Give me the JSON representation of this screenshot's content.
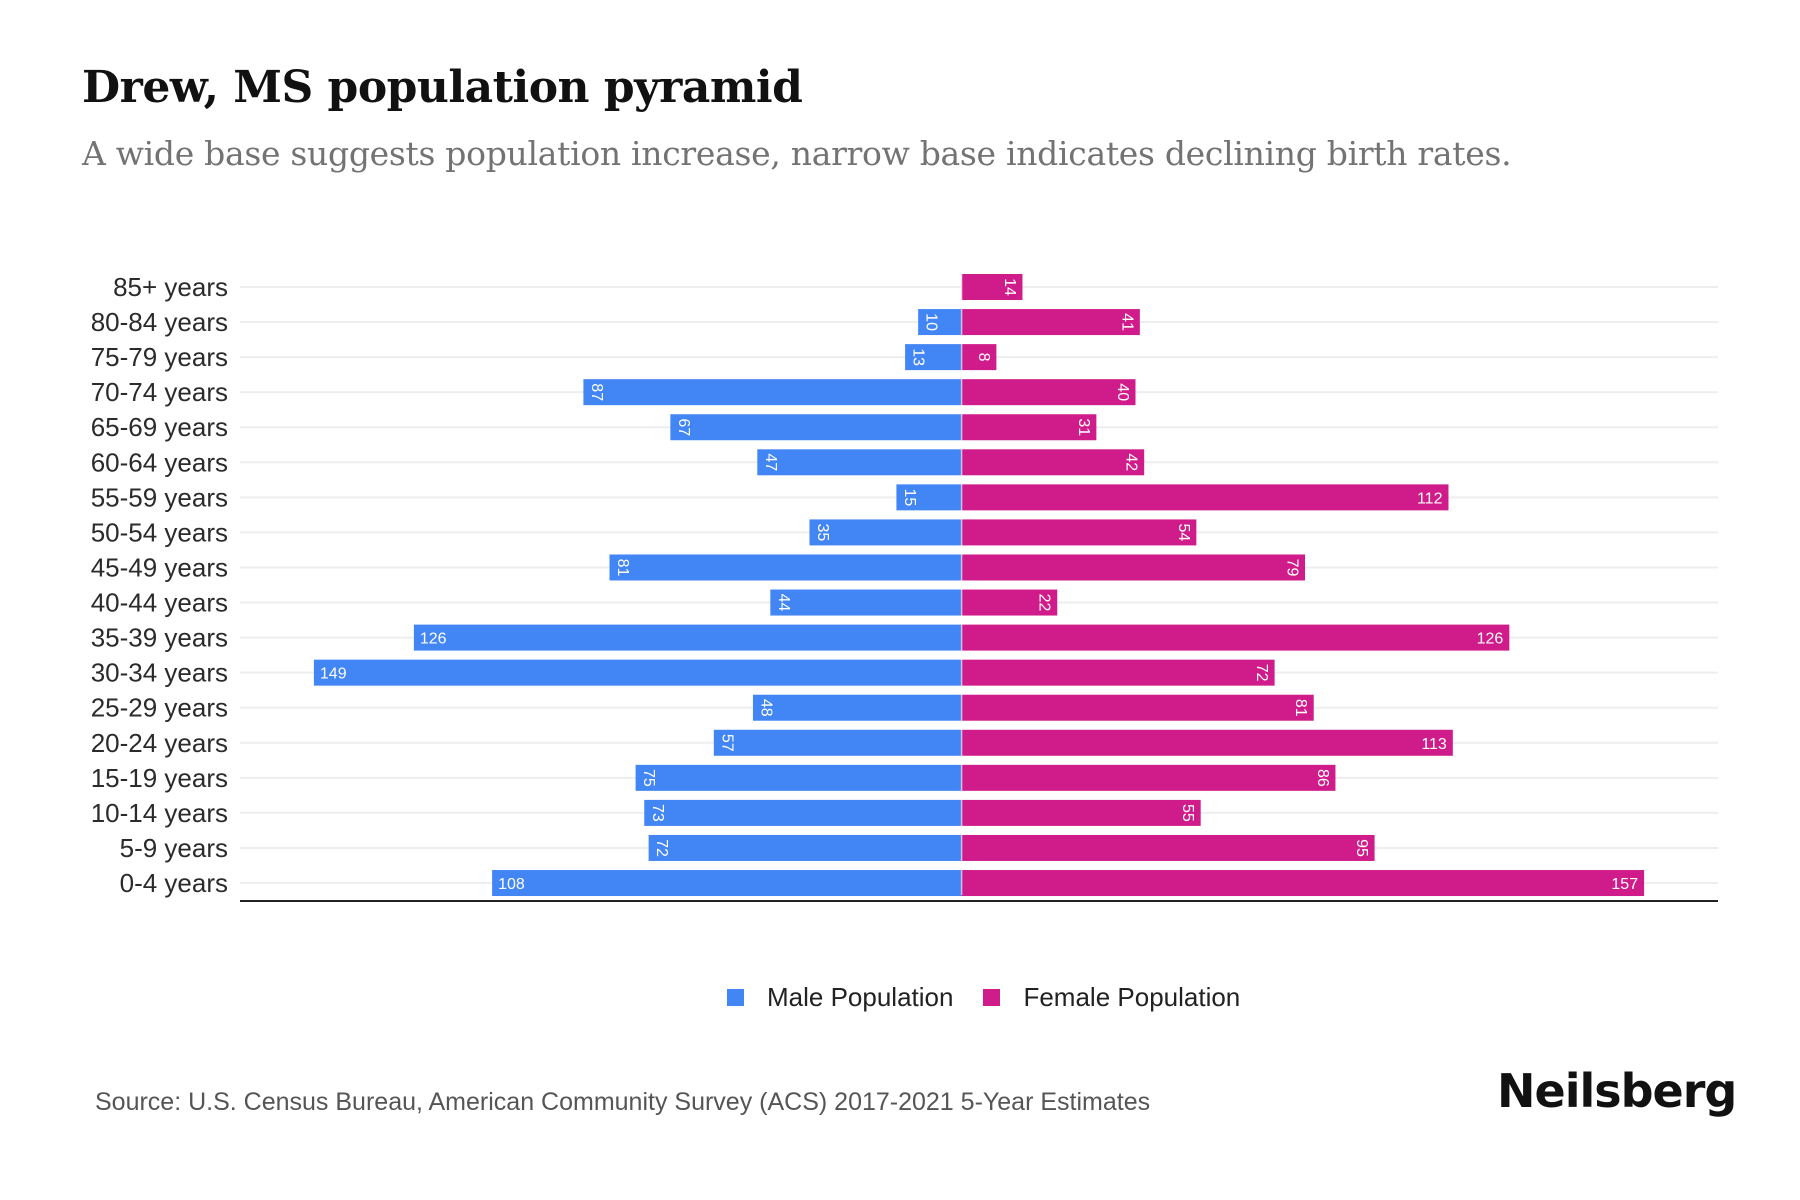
{
  "header": {
    "title": "Drew, MS population pyramid",
    "subtitle": "A wide base suggests population increase, narrow base indicates declining birth rates."
  },
  "legend": {
    "male_label": "Male Population",
    "female_label": "Female Population"
  },
  "footer": {
    "source": "Source: U.S. Census Bureau, American Community Survey (ACS) 2017-2021 5-Year Estimates",
    "brand": "Neilsberg"
  },
  "colors": {
    "male": "#4285f4",
    "female": "#d01c8b",
    "grid": "#eeeeee",
    "axis": "#222222"
  },
  "chart_data": {
    "type": "bar",
    "orientation": "horizontal",
    "subtype": "population-pyramid",
    "title": "Drew, MS population pyramid",
    "subtitle": "A wide base suggests population increase, narrow base indicates declining birth rates.",
    "xlabel": "",
    "ylabel": "",
    "categories": [
      "85+ years",
      "80-84 years",
      "75-79 years",
      "70-74 years",
      "65-69 years",
      "60-64 years",
      "55-59 years",
      "50-54 years",
      "45-49 years",
      "40-44 years",
      "35-39 years",
      "30-34 years",
      "25-29 years",
      "20-24 years",
      "15-19 years",
      "10-14 years",
      "5-9 years",
      "0-4 years"
    ],
    "series": [
      {
        "name": "Male Population",
        "side": "left",
        "values": [
          0,
          10,
          13,
          87,
          67,
          47,
          15,
          35,
          81,
          44,
          126,
          149,
          48,
          57,
          75,
          73,
          72,
          108
        ]
      },
      {
        "name": "Female Population",
        "side": "right",
        "values": [
          14,
          41,
          8,
          40,
          31,
          42,
          112,
          54,
          79,
          22,
          126,
          72,
          81,
          113,
          86,
          55,
          95,
          157
        ]
      }
    ],
    "xlim": [
      -166,
      174
    ],
    "grid": true,
    "data_labels": true,
    "legend_position": "bottom-center"
  }
}
